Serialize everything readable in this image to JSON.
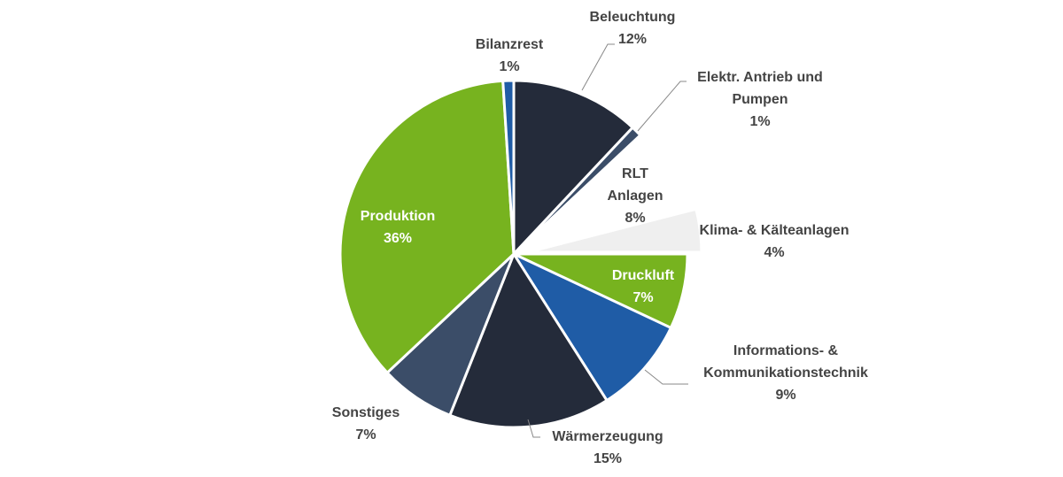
{
  "chart_data": {
    "type": "pie",
    "title": "",
    "slices": [
      {
        "name": "Beleuchtung",
        "label": "Beleuchtung",
        "pct_label": "12%",
        "value": 12,
        "color": "#242b3a",
        "offset": 0
      },
      {
        "name": "Elektr. Antrieb und Pumpen",
        "label": "Elektr. Antrieb und Pumpen",
        "pct_label": "1%",
        "value": 1,
        "color": "#3b4d68",
        "offset": 0
      },
      {
        "name": "RLT Anlagen",
        "label": "RLT Anlagen",
        "pct_label": "8%",
        "value": 8,
        "color": "#ffffff",
        "offset": 0
      },
      {
        "name": "Klima- & Kälteanlagen",
        "label": "Klima- & Kälteanlagen",
        "pct_label": "4%",
        "value": 4,
        "color": "#efefef",
        "offset": 1
      },
      {
        "name": "Druckluft",
        "label": "Druckluft",
        "pct_label": "7%",
        "value": 7,
        "color": "#77b31f",
        "offset": 0
      },
      {
        "name": "Informations- & Kommunikationstechnik",
        "label": "Informations- & Kommunikationstechnik",
        "pct_label": "9%",
        "value": 9,
        "color": "#1f5ca6",
        "offset": 0
      },
      {
        "name": "Wärmerzeugung",
        "label": "Wärmerzeugung",
        "pct_label": "15%",
        "value": 15,
        "color": "#242b3a",
        "offset": 0
      },
      {
        "name": "Sonstiges",
        "label": "Sonstiges",
        "pct_label": "7%",
        "value": 7,
        "color": "#3b4d68",
        "offset": 0
      },
      {
        "name": "Produktion",
        "label": "Produktion",
        "pct_label": "36%",
        "value": 36,
        "color": "#77b31f",
        "offset": 0
      },
      {
        "name": "Bilanzrest",
        "label": "Bilanzrest",
        "pct_label": "1%",
        "value": 1,
        "color": "#1f5ca6",
        "offset": 0
      }
    ]
  }
}
